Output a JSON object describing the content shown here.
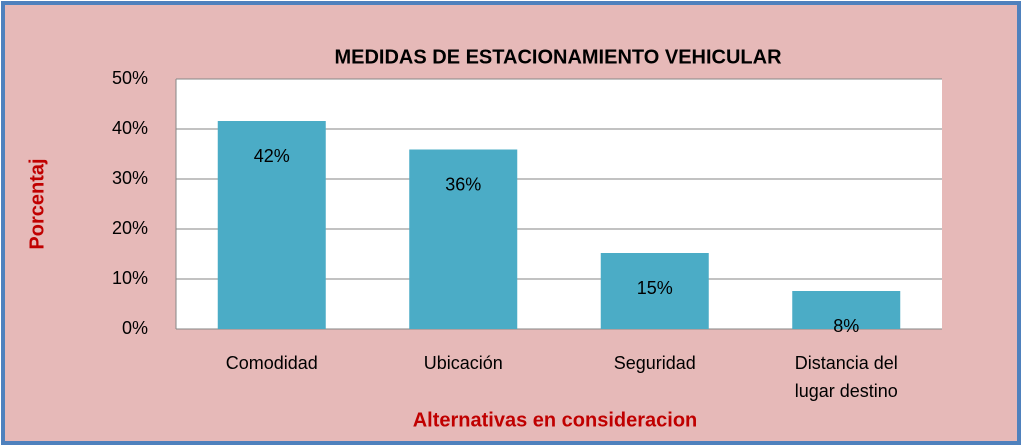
{
  "chart_data": {
    "type": "bar",
    "title": "MEDIDAS DE ESTACIONAMIENTO VEHICULAR",
    "y_label": "Porcentaj",
    "x_label": "Alternativas en consideracion",
    "categories": [
      "Comodidad",
      "Ubicación",
      "Seguridad",
      "Distancia del lugar destino"
    ],
    "values": [
      41.6,
      35.9,
      15.2,
      7.6
    ],
    "value_labels": [
      "42%",
      "36%",
      "15%",
      "8%"
    ],
    "color": "#4bacc6",
    "ylim": [
      0,
      50
    ],
    "yticks": [
      {
        "value": 0,
        "label": "0%"
      },
      {
        "value": 10,
        "label": "10%"
      },
      {
        "value": 20,
        "label": "20%"
      },
      {
        "value": 30,
        "label": "30%"
      },
      {
        "value": 40,
        "label": "40%"
      },
      {
        "value": 50,
        "label": "50%"
      }
    ],
    "grid": true
  }
}
